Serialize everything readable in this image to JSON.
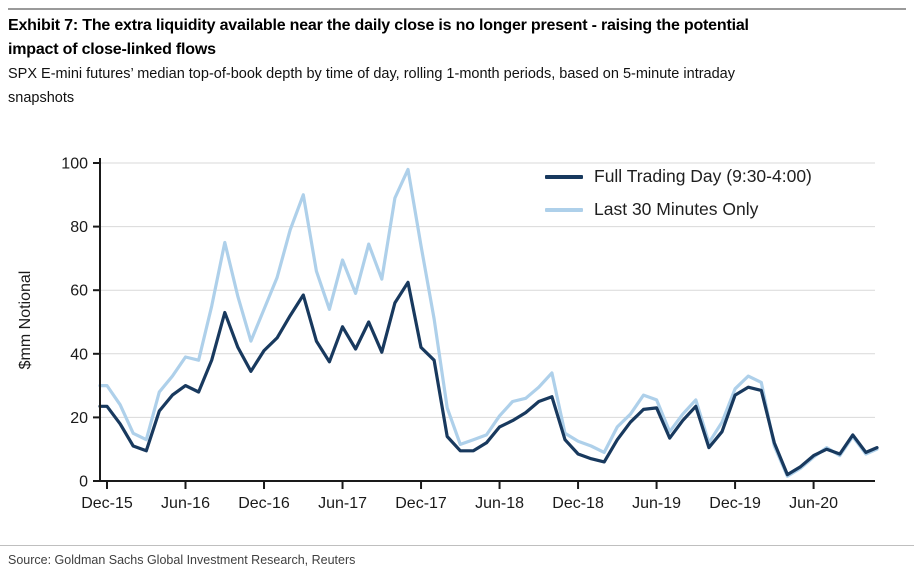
{
  "header": {
    "title_lines": [
      "Exhibit 7: The extra liquidity available near the daily close is no longer present - raising the potential",
      "impact of close-linked flows"
    ],
    "subtitle_lines": [
      "SPX E-mini futures’ median top-of-book depth by time of day, rolling 1-month periods, based on 5-minute intraday",
      "snapshots"
    ]
  },
  "footer": {
    "source": "Source: Goldman Sachs Global Investment Research, Reuters"
  },
  "colors": {
    "full_day_line": "#18395e",
    "last30_line": "#aed0ea",
    "grid": "#d9d9d9",
    "axis": "#1a1a1a",
    "tick_label": "#1a1a1a"
  },
  "chart_data": {
    "type": "line",
    "title": "",
    "xlabel": "",
    "ylabel": "$mm Notional",
    "ylim": [
      0,
      100
    ],
    "yticks": [
      0,
      20,
      40,
      60,
      80,
      100
    ],
    "grid": "horizontal-only",
    "legend_position": "top-right",
    "xtick_labels": [
      "Dec-15",
      "Jun-16",
      "Dec-16",
      "Jun-17",
      "Dec-17",
      "Jun-18",
      "Dec-18",
      "Jun-19",
      "Dec-19",
      "Jun-20"
    ],
    "x_months": [
      "Dec-15",
      "Jan-16",
      "Feb-16",
      "Mar-16",
      "Apr-16",
      "May-16",
      "Jun-16",
      "Jul-16",
      "Aug-16",
      "Sep-16",
      "Oct-16",
      "Nov-16",
      "Dec-16",
      "Jan-17",
      "Feb-17",
      "Mar-17",
      "Apr-17",
      "May-17",
      "Jun-17",
      "Jul-17",
      "Aug-17",
      "Sep-17",
      "Oct-17",
      "Nov-17",
      "Dec-17",
      "Jan-18",
      "Feb-18",
      "Mar-18",
      "Apr-18",
      "May-18",
      "Jun-18",
      "Jul-18",
      "Aug-18",
      "Sep-18",
      "Oct-18",
      "Nov-18",
      "Dec-18",
      "Jan-19",
      "Feb-19",
      "Mar-19",
      "Apr-19",
      "May-19",
      "Jun-19",
      "Jul-19",
      "Aug-19",
      "Sep-19",
      "Oct-19",
      "Nov-19",
      "Dec-19",
      "Jan-20",
      "Feb-20",
      "Mar-20",
      "Apr-20",
      "May-20",
      "Jun-20",
      "Jul-20",
      "Aug-20",
      "Sep-20",
      "Oct-20",
      "Nov-20"
    ],
    "series": [
      {
        "name": "Full Trading Day (9:30-4:00)",
        "color": "#18395e",
        "values": [
          23.5,
          18,
          11,
          9.5,
          22,
          27,
          30,
          28,
          38,
          53,
          42,
          34.5,
          41,
          45,
          52,
          58.5,
          44,
          37.5,
          48.5,
          41.5,
          50,
          40.5,
          56,
          62.5,
          42,
          38,
          14,
          9.5,
          9.5,
          12,
          17,
          19,
          21.5,
          25,
          26.5,
          13,
          8.5,
          7,
          6,
          13,
          18.5,
          22.5,
          23,
          13.5,
          19,
          23.5,
          10.5,
          15.5,
          27,
          29.5,
          28.5,
          12,
          2,
          4.5,
          8,
          10,
          8.5,
          14.5,
          9,
          10.5
        ]
      },
      {
        "name": "Last 30 Minutes Only",
        "color": "#aed0ea",
        "values": [
          30,
          24,
          15,
          13,
          28,
          33,
          39,
          38,
          55,
          75,
          58,
          44,
          54,
          64,
          79,
          90,
          66,
          54,
          69.5,
          59,
          74.5,
          63.5,
          89,
          98,
          74,
          51,
          23,
          11.5,
          13,
          14.5,
          20.5,
          25,
          26,
          29.5,
          34,
          15,
          12.5,
          11,
          9,
          17,
          21,
          27,
          25.5,
          15.5,
          21,
          25.5,
          12,
          18.5,
          29,
          33,
          31,
          11,
          1.5,
          4,
          7.5,
          10.5,
          8,
          14,
          8.5,
          10
        ]
      }
    ]
  }
}
